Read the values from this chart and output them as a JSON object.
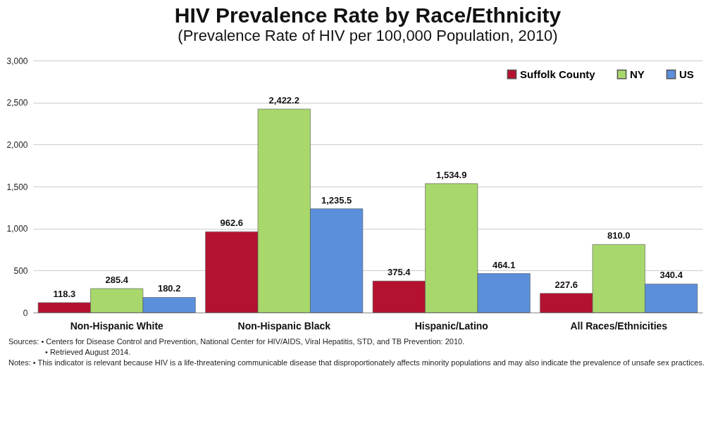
{
  "chart_data": {
    "type": "bar",
    "title": "HIV Prevalence Rate by Race/Ethnicity",
    "subtitle": "(Prevalence Rate of HIV per 100,000 Population, 2010)",
    "categories": [
      "Non-Hispanic White",
      "Non-Hispanic Black",
      "Hispanic/Latino",
      "All Races/Ethnicities"
    ],
    "series": [
      {
        "name": "Suffolk County",
        "color": "#b5122f",
        "values": [
          118.3,
          962.6,
          375.4,
          227.6
        ],
        "value_labels": [
          "118.3",
          "962.6",
          "375.4",
          "227.6"
        ]
      },
      {
        "name": "NY",
        "color": "#a8d86c",
        "values": [
          285.4,
          2422.2,
          1534.9,
          810.0
        ],
        "value_labels": [
          "285.4",
          "2,422.2",
          "1,534.9",
          "810.0"
        ]
      },
      {
        "name": "US",
        "color": "#5b8fdb",
        "values": [
          180.2,
          1235.5,
          464.1,
          340.4
        ],
        "value_labels": [
          "180.2",
          "1,235.5",
          "464.1",
          "340.4"
        ]
      }
    ],
    "ylim": [
      0,
      3000
    ],
    "yticks": [
      0,
      500,
      {
        "value": 1000,
        "label": "1,000"
      },
      {
        "value": 1500,
        "label": "1,500"
      },
      {
        "value": 2000,
        "label": "2,000"
      },
      {
        "value": 2500,
        "label": "2,500"
      },
      {
        "value": 3000,
        "label": "3,000"
      }
    ],
    "grid": "y",
    "legend": "top right",
    "annotations": [
      "Sources:  • Centers for Disease Control and Prevention, National Center for HIV/AIDS, Viral Hepatitis, STD, and TB Prevention: 2010.",
      "• Retrieved August 2014.",
      "Notes:  • This indicator is relevant because HIV is a life-threatening communicable disease that disproportionately affects minority populations and may also indicate the prevalence of unsafe sex practices."
    ]
  }
}
